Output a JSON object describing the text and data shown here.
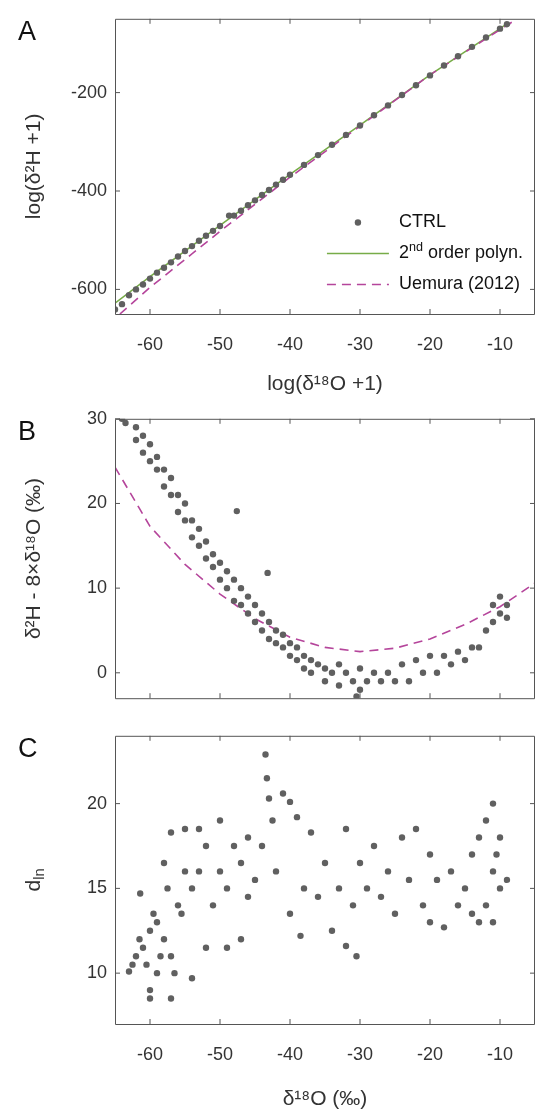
{
  "chart_data": [
    {
      "type": "scatter",
      "title": "A",
      "xlabel": "log(δ¹⁸O +1)",
      "ylabel": "log(δ²H +1)",
      "xlim": [
        -65,
        -5
      ],
      "ylim": [
        -650,
        -50
      ],
      "xticks": [
        -60,
        -50,
        -40,
        -30,
        -20,
        -10
      ],
      "yticks": [
        -600,
        -400,
        -200
      ],
      "legend": "bottom right",
      "series": [
        {
          "name": "CTRL",
          "marker": "circle",
          "color": "#606060",
          "x": [
            -65,
            -64,
            -63,
            -62,
            -61,
            -60,
            -59,
            -58,
            -57,
            -56,
            -55,
            -54,
            -53,
            -52,
            -51,
            -50,
            -48.7,
            -48,
            -47,
            -46,
            -45,
            -44,
            -43,
            -42,
            -41,
            -40,
            -38,
            -36,
            -34,
            -32,
            -30,
            -28,
            -26,
            -24,
            -22,
            -20,
            -18,
            -16,
            -14,
            -12,
            -10,
            -9
          ],
          "values": [
            -641,
            -630,
            -612,
            -600,
            -590,
            -578,
            -566,
            -556,
            -545,
            -533,
            -522,
            -512,
            -501,
            -491,
            -481,
            -471,
            -450,
            -450,
            -440,
            -429,
            -419,
            -408,
            -398,
            -387,
            -377,
            -367,
            -347,
            -327,
            -306,
            -286,
            -267,
            -246,
            -226,
            -205,
            -185,
            -165,
            -145,
            -126,
            -107,
            -88,
            -70,
            -61
          ]
        },
        {
          "name": "2$^{nd}$ order polyn.",
          "type": "line",
          "line_style": "solid",
          "color": "#77ac48",
          "x": [
            -65,
            -60,
            -50,
            -40,
            -30,
            -20,
            -10,
            -9
          ],
          "values": [
            -628,
            -574,
            -470,
            -366,
            -266,
            -164,
            -70,
            -60
          ]
        },
        {
          "name": "Uemura (2012)",
          "type": "line",
          "line_style": "dashed",
          "color": "#b5459b",
          "x": [
            -64.3,
            -60,
            -50,
            -40,
            -30,
            -20,
            -10,
            -8.1
          ],
          "values": [
            -650,
            -596,
            -482,
            -372,
            -268,
            -164,
            -72,
            -55
          ]
        }
      ]
    },
    {
      "type": "scatter",
      "title": "B",
      "ylabel": "δ²H - 8×δ¹⁸O (‰)",
      "xlim": [
        -65,
        -5
      ],
      "ylim": [
        -3,
        30
      ],
      "xticks": [
        -60,
        -50,
        -40,
        -30,
        -20,
        -10
      ],
      "yticks": [
        0,
        10,
        20,
        30
      ],
      "tick_labels": "y",
      "series": [
        {
          "marker": "circle",
          "color": "#606060",
          "x": [
            -64,
            -63.5,
            -62,
            -62,
            -61,
            -61,
            -60,
            -60,
            -59,
            -59,
            -58,
            -58,
            -57,
            -57,
            -56,
            -56,
            -55,
            -55,
            -54,
            -54,
            -53,
            -53,
            -52,
            -52,
            -51,
            -51,
            -50,
            -50,
            -49,
            -49,
            -48,
            -48,
            -47,
            -47,
            -46,
            -46,
            -45,
            -45,
            -44,
            -44,
            -43,
            -43,
            -42,
            -42,
            -41,
            -41,
            -40,
            -40,
            -39,
            -39,
            -38,
            -38,
            -37,
            -37,
            -36,
            -35,
            -35,
            -34,
            -33,
            -33,
            -32,
            -31,
            -30,
            -30,
            -29,
            -28,
            -27,
            -26,
            -25,
            -24,
            -23,
            -22,
            -21,
            -20,
            -19,
            -18,
            -17,
            -16,
            -15,
            -14,
            -13,
            -12,
            -11,
            -11,
            -10,
            -10,
            -9,
            -9,
            -47.6,
            -43.2,
            -30.5
          ],
          "values": [
            30,
            29.5,
            29,
            27.5,
            28,
            26,
            27,
            25,
            25.5,
            24,
            24,
            22,
            23,
            21,
            21,
            19,
            20,
            18,
            18,
            16,
            17,
            15,
            15.5,
            13.5,
            14,
            12.5,
            13,
            11,
            12,
            10,
            11,
            8.5,
            10,
            8,
            9,
            7,
            8,
            6,
            7,
            5,
            6,
            4,
            5,
            3.5,
            4.5,
            3,
            3.5,
            2,
            3,
            1.5,
            2,
            0.5,
            1.5,
            0,
            1,
            0.5,
            -1,
            0,
            1,
            -1.5,
            0,
            -1,
            -2,
            0.5,
            -1,
            0,
            -1,
            0,
            -1,
            1,
            -1,
            1.5,
            0,
            2,
            0,
            2,
            1,
            2.5,
            1.5,
            3,
            3,
            5,
            6,
            8,
            9,
            7,
            8,
            6.5,
            19.1,
            11.8,
            -2.8
          ]
        },
        {
          "type": "line",
          "line_style": "dashed",
          "color": "#b5459b",
          "x": [
            -65,
            -60,
            -55,
            -50,
            -45,
            -40,
            -35,
            -30,
            -25,
            -20,
            -15,
            -10,
            -5
          ],
          "values": [
            24.3,
            17.3,
            12.8,
            9.3,
            6.4,
            4.2,
            3.0,
            2.5,
            2.9,
            4.0,
            5.7,
            7.8,
            10.6
          ]
        }
      ]
    },
    {
      "type": "scatter",
      "title": "C",
      "xlabel": "δ¹⁸O (‰)",
      "ylabel": "d$_{ln}$",
      "xlim": [
        -65,
        -5
      ],
      "ylim": [
        7,
        24
      ],
      "xticks": [
        -60,
        -50,
        -40,
        -30,
        -20,
        -10
      ],
      "yticks": [
        10,
        15,
        20
      ],
      "series": [
        {
          "marker": "circle",
          "color": "#606060",
          "x": [
            -63,
            -62.5,
            -62,
            -61.5,
            -61.4,
            -61,
            -60.5,
            -60,
            -60,
            -60,
            -59.5,
            -59,
            -59,
            -58.5,
            -58,
            -58,
            -57.5,
            -57,
            -57,
            -57,
            -56.5,
            -56,
            -55.5,
            -55,
            -55,
            -54,
            -54,
            -53,
            -53,
            -52,
            -52,
            -51,
            -50,
            -50,
            -49,
            -49,
            -48,
            -47,
            -47,
            -46,
            -46,
            -45,
            -44,
            -43.5,
            -43.3,
            -43,
            -42.5,
            -42,
            -41,
            -40,
            -40,
            -39,
            -38.5,
            -38,
            -37,
            -36,
            -35,
            -34,
            -33,
            -32,
            -32,
            -31,
            -30.5,
            -30,
            -29,
            -28,
            -27,
            -26,
            -25,
            -24,
            -23,
            -22,
            -21,
            -20,
            -20,
            -19,
            -18,
            -17,
            -16,
            -15,
            -14,
            -14,
            -13,
            -13,
            -12,
            -12,
            -11,
            -11,
            -11,
            -10.5,
            -10,
            -10,
            -9
          ],
          "values": [
            10.1,
            10.5,
            11,
            12,
            14.7,
            11.5,
            10.5,
            8.5,
            9,
            12.5,
            13.5,
            10,
            13,
            11,
            12,
            16.5,
            15,
            8.5,
            11,
            18.3,
            10,
            14,
            13.5,
            16,
            18.5,
            9.7,
            15,
            18.5,
            16,
            11.5,
            17.5,
            14,
            19,
            16,
            11.5,
            15,
            17.5,
            12,
            16.5,
            18,
            14.5,
            15.5,
            17.5,
            22.9,
            21.5,
            20.3,
            19,
            16,
            20.6,
            20.1,
            13.5,
            19.2,
            12.2,
            15,
            18.3,
            14.5,
            16.5,
            12.5,
            15,
            18.5,
            11.6,
            14,
            11,
            16.5,
            15,
            17.5,
            14.5,
            16,
            13.5,
            18,
            15.5,
            18.5,
            14,
            17,
            13,
            15.5,
            12.7,
            16,
            14,
            15,
            13.5,
            17,
            13,
            18,
            14,
            19,
            20,
            16,
            13,
            17,
            15,
            18,
            15.5
          ]
        }
      ]
    }
  ]
}
